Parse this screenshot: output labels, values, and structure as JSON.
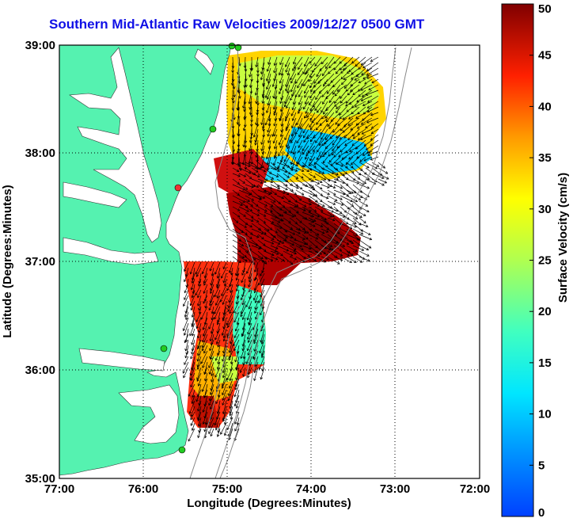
{
  "title": "Southern Mid-Atlantic Raw Velocities 2009/12/27 0500 GMT",
  "xlabel": "Longitude (Degrees:Minutes)",
  "ylabel": "Latitude (Degrees:Minutes)",
  "x_ticks": [
    "77:00",
    "76:00",
    "75:00",
    "74:00",
    "73:00",
    "72:00"
  ],
  "y_ticks": [
    "39:00",
    "38:00",
    "37:00",
    "36:00",
    "35:00"
  ],
  "colorbar": {
    "label": "Surface Velocity (cm/s)",
    "ticks": [
      "0",
      "5",
      "10",
      "15",
      "20",
      "25",
      "30",
      "35",
      "40",
      "45",
      "50"
    ],
    "min": 0,
    "max": 50
  },
  "colors": {
    "land": "#55f2b0",
    "water": "#ffffff",
    "arrows": "#000000",
    "stations": "#22cc22",
    "station_alt": "#ee3333",
    "title": "#1010e6"
  }
}
